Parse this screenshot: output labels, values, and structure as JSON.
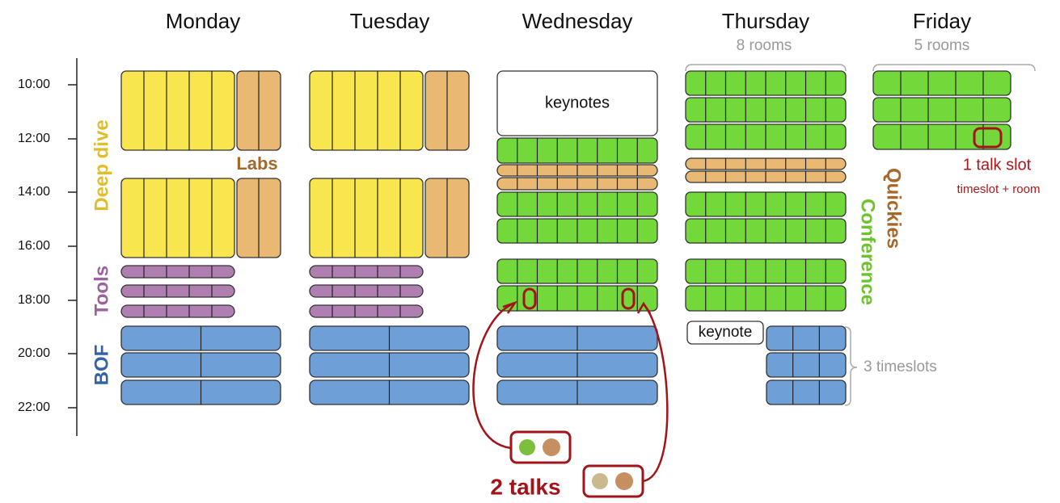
{
  "days": [
    "Monday",
    "Tuesday",
    "Wednesday",
    "Thursday",
    "Friday"
  ],
  "times": [
    "10:00",
    "12:00",
    "14:00",
    "16:00",
    "18:00",
    "20:00",
    "22:00"
  ],
  "labels": {
    "deep_dive": "Deep dive",
    "labs": "Labs",
    "tools": "Tools",
    "bof": "BOF",
    "quickies": "Quickies",
    "conference": "Conference",
    "keynotes": "keynotes",
    "keynote": "keynote",
    "thursday_rooms": "8 rooms",
    "friday_rooms": "5 rooms",
    "timeslots": "3 timeslots",
    "talk_slot": "1 talk slot",
    "talk_slot_note": "timeslot + room",
    "two_talks": "2 talks"
  }
}
